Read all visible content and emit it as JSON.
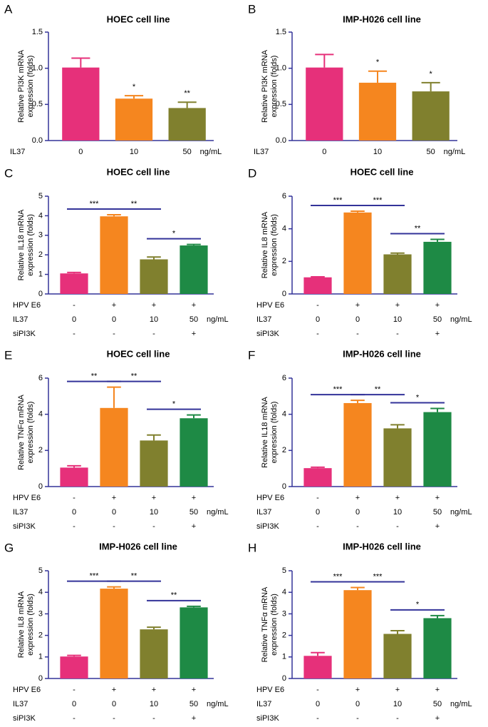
{
  "chart_data": [
    {
      "type": "bar",
      "panel": "A",
      "title": "HOEC cell line",
      "ylabel": [
        "Relative PI3K mRNA",
        "expression (folds)"
      ],
      "ylim": [
        0,
        1.5
      ],
      "yticks": [
        {
          "value": 0,
          "label": "0.0"
        },
        {
          "value": 0.5,
          "label": "0.5"
        },
        {
          "value": 1,
          "label": "1.0"
        },
        {
          "value": 1.5,
          "label": "1.5"
        }
      ],
      "conditions": [
        {
          "name": "IL37",
          "labels": [
            "0",
            "10",
            "50"
          ],
          "unit": "ng/mL"
        }
      ],
      "values": [
        1.01,
        0.58,
        0.45
      ],
      "errors": [
        0.13,
        0.04,
        0.08
      ],
      "colors": [
        "#e6307a",
        "#f5861f",
        "#80802e"
      ],
      "stars": [
        null,
        "*",
        "**"
      ]
    },
    {
      "type": "bar",
      "panel": "B",
      "title": "IMP-H026 cell line",
      "ylabel": [
        "Relative PI3K mRNA",
        "expression (folds)"
      ],
      "ylim": [
        0,
        1.5
      ],
      "yticks": [
        {
          "value": 0,
          "label": "0.0"
        },
        {
          "value": 0.5,
          "label": "0.5"
        },
        {
          "value": 1,
          "label": "1.0"
        },
        {
          "value": 1.5,
          "label": "1.5"
        }
      ],
      "conditions": [
        {
          "name": "IL37",
          "labels": [
            "0",
            "10",
            "50"
          ],
          "unit": "ng/mL"
        }
      ],
      "values": [
        1.01,
        0.8,
        0.68
      ],
      "errors": [
        0.18,
        0.16,
        0.12
      ],
      "colors": [
        "#e6307a",
        "#f5861f",
        "#80802e"
      ],
      "stars": [
        null,
        "*",
        "*"
      ]
    },
    {
      "type": "bar",
      "panel": "C",
      "title": "HOEC cell line",
      "ylabel": [
        "Relative IL18 mRNA",
        "expression (folds)"
      ],
      "ylim": [
        0,
        5
      ],
      "yticks": [
        0,
        1,
        2,
        3,
        4,
        5
      ],
      "conditions": [
        {
          "name": "HPV E6",
          "labels": [
            "-",
            "+",
            "+",
            "+"
          ]
        },
        {
          "name": "IL37",
          "labels": [
            "0",
            "0",
            "10",
            "50"
          ],
          "unit": "ng/mL"
        },
        {
          "name": "siPI3K",
          "labels": [
            "-",
            "-",
            "-",
            "+"
          ]
        }
      ],
      "values": [
        1.05,
        3.97,
        1.77,
        2.48
      ],
      "errors": [
        0.05,
        0.08,
        0.12,
        0.05
      ],
      "colors": [
        "#e6307a",
        "#f5861f",
        "#80802e",
        "#1e8a45"
      ],
      "comparisons": [
        {
          "bars": [
            0,
            1
          ],
          "label": "***"
        },
        {
          "bars": [
            1,
            2
          ],
          "label": "**"
        },
        {
          "bars": [
            2,
            3
          ],
          "label": "*"
        }
      ]
    },
    {
      "type": "bar",
      "panel": "D",
      "title": "HOEC cell line",
      "ylabel": [
        "Relative IL8 mRNA",
        "expression (folds)"
      ],
      "ylim": [
        0,
        6
      ],
      "yticks": [
        0,
        2,
        4,
        6
      ],
      "conditions": [
        {
          "name": "HPV E6",
          "labels": [
            "-",
            "+",
            "+",
            "+"
          ]
        },
        {
          "name": "IL37",
          "labels": [
            "0",
            "0",
            "10",
            "50"
          ],
          "unit": "ng/mL"
        },
        {
          "name": "siPI3K",
          "labels": [
            "-",
            "-",
            "-",
            "+"
          ]
        }
      ],
      "values": [
        1.02,
        5.0,
        2.43,
        3.2
      ],
      "errors": [
        0.03,
        0.08,
        0.08,
        0.15
      ],
      "colors": [
        "#e6307a",
        "#f5861f",
        "#80802e",
        "#1e8a45"
      ],
      "comparisons": [
        {
          "bars": [
            0,
            1
          ],
          "label": "***"
        },
        {
          "bars": [
            1,
            2
          ],
          "label": "***"
        },
        {
          "bars": [
            2,
            3
          ],
          "label": "**"
        }
      ]
    },
    {
      "type": "bar",
      "panel": "E",
      "title": "HOEC cell line",
      "ylabel": [
        "Relative TNFα mRNA",
        "expression (folds)"
      ],
      "ylim": [
        0,
        6
      ],
      "yticks": [
        0,
        2,
        4,
        6
      ],
      "conditions": [
        {
          "name": "HPV E6",
          "labels": [
            "-",
            "+",
            "+",
            "+"
          ]
        },
        {
          "name": "IL37",
          "labels": [
            "0",
            "0",
            "10",
            "50"
          ],
          "unit": "ng/mL"
        },
        {
          "name": "siPI3K",
          "labels": [
            "-",
            "-",
            "-",
            "+"
          ]
        }
      ],
      "values": [
        1.05,
        4.35,
        2.55,
        3.78
      ],
      "errors": [
        0.1,
        1.15,
        0.3,
        0.18
      ],
      "colors": [
        "#e6307a",
        "#f5861f",
        "#80802e",
        "#1e8a45"
      ],
      "comparisons": [
        {
          "bars": [
            0,
            1
          ],
          "label": "**"
        },
        {
          "bars": [
            1,
            2
          ],
          "label": "**"
        },
        {
          "bars": [
            2,
            3
          ],
          "label": "*"
        }
      ]
    },
    {
      "type": "bar",
      "panel": "F",
      "title": "IMP-H026 cell line",
      "ylabel": [
        "Relative IL18 mRNA",
        "expression (folds)"
      ],
      "ylim": [
        0,
        6
      ],
      "yticks": [
        0,
        2,
        4,
        6
      ],
      "conditions": [
        {
          "name": "HPV E6",
          "labels": [
            "-",
            "+",
            "+",
            "+"
          ]
        },
        {
          "name": "IL37",
          "labels": [
            "0",
            "0",
            "10",
            "50"
          ],
          "unit": "ng/mL"
        },
        {
          "name": "siPI3K",
          "labels": [
            "-",
            "-",
            "-",
            "+"
          ]
        }
      ],
      "values": [
        1.02,
        4.62,
        3.22,
        4.12
      ],
      "errors": [
        0.05,
        0.15,
        0.2,
        0.2
      ],
      "colors": [
        "#e6307a",
        "#f5861f",
        "#80802e",
        "#1e8a45"
      ],
      "comparisons": [
        {
          "bars": [
            0,
            1
          ],
          "label": "***"
        },
        {
          "bars": [
            1,
            2
          ],
          "label": "**"
        },
        {
          "bars": [
            2,
            3
          ],
          "label": "*"
        }
      ]
    },
    {
      "type": "bar",
      "panel": "G",
      "title": "IMP-H026 cell line",
      "ylabel": [
        "Relative IL8 mRNA",
        "expression (folds)"
      ],
      "ylim": [
        0,
        5
      ],
      "yticks": [
        0,
        1,
        2,
        3,
        4,
        5
      ],
      "conditions": [
        {
          "name": "HPV E6",
          "labels": [
            "-",
            "+",
            "+",
            "+"
          ]
        },
        {
          "name": "IL37",
          "labels": [
            "0",
            "0",
            "10",
            "50"
          ],
          "unit": "ng/mL"
        },
        {
          "name": "siPI3K",
          "labels": [
            "-",
            "-",
            "-",
            "+"
          ]
        }
      ],
      "values": [
        1.02,
        4.17,
        2.28,
        3.3
      ],
      "errors": [
        0.05,
        0.08,
        0.1,
        0.05
      ],
      "colors": [
        "#e6307a",
        "#f5861f",
        "#80802e",
        "#1e8a45"
      ],
      "comparisons": [
        {
          "bars": [
            0,
            1
          ],
          "label": "***"
        },
        {
          "bars": [
            1,
            2
          ],
          "label": "**"
        },
        {
          "bars": [
            2,
            3
          ],
          "label": "**"
        }
      ]
    },
    {
      "type": "bar",
      "panel": "H",
      "title": "IMP-H026 cell line",
      "ylabel": [
        "Relative TNFα mRNA",
        "expression (folds)"
      ],
      "ylim": [
        0,
        5
      ],
      "yticks": [
        0,
        1,
        2,
        3,
        4,
        5
      ],
      "conditions": [
        {
          "name": "HPV E6",
          "labels": [
            "-",
            "+",
            "+",
            "+"
          ]
        },
        {
          "name": "IL37",
          "labels": [
            "0",
            "0",
            "10",
            "50"
          ],
          "unit": "ng/mL"
        },
        {
          "name": "siPI3K",
          "labels": [
            "-",
            "-",
            "-",
            "+"
          ]
        }
      ],
      "values": [
        1.05,
        4.1,
        2.07,
        2.8
      ],
      "errors": [
        0.15,
        0.12,
        0.15,
        0.12
      ],
      "colors": [
        "#e6307a",
        "#f5861f",
        "#80802e",
        "#1e8a45"
      ],
      "comparisons": [
        {
          "bars": [
            0,
            1
          ],
          "label": "***"
        },
        {
          "bars": [
            1,
            2
          ],
          "label": "***"
        },
        {
          "bars": [
            2,
            3
          ],
          "label": "*"
        }
      ]
    }
  ]
}
